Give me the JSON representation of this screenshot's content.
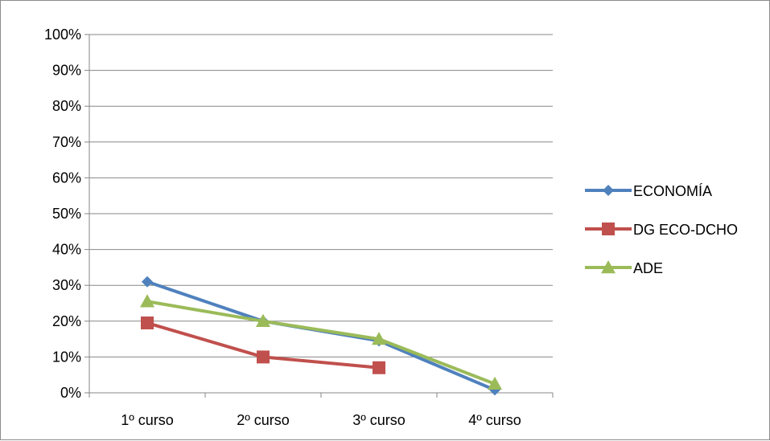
{
  "chart_data": {
    "type": "line",
    "categories": [
      "1º curso",
      "2º curso",
      "3º curso",
      "4º curso"
    ],
    "y_tick_labels": [
      "0%",
      "10%",
      "20%",
      "30%",
      "40%",
      "50%",
      "60%",
      "70%",
      "80%",
      "90%",
      "100%"
    ],
    "ylim": [
      0,
      100
    ],
    "grid": true,
    "legend_position": "right",
    "series": [
      {
        "name": "ECONOMÍA",
        "values": [
          31,
          20,
          14.5,
          0.8
        ],
        "color": "#4f81bd",
        "marker": "diamond"
      },
      {
        "name": "DG ECO-DCHO",
        "values": [
          19.5,
          10,
          7,
          null
        ],
        "color": "#c0504d",
        "marker": "square"
      },
      {
        "name": "ADE",
        "values": [
          25.5,
          20,
          15,
          2.5
        ],
        "color": "#9bbb59",
        "marker": "triangle"
      }
    ]
  }
}
